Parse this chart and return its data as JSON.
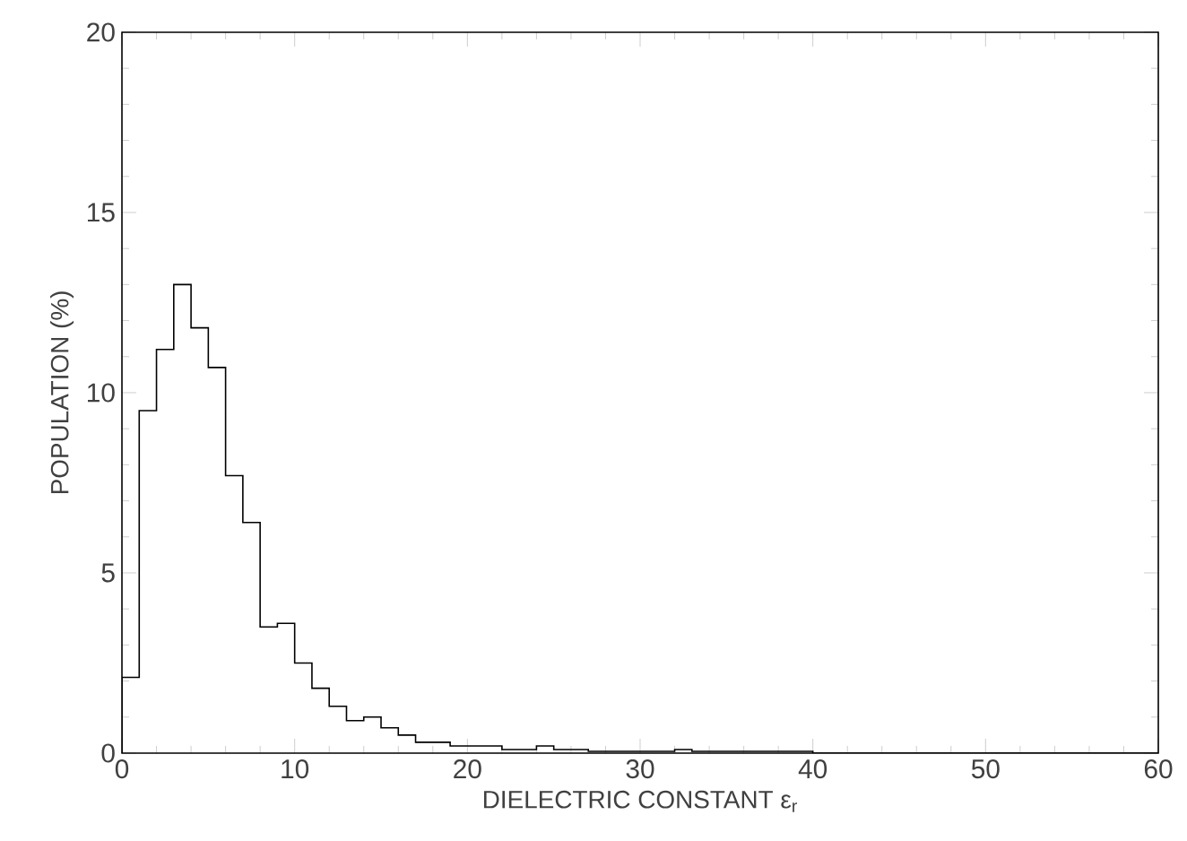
{
  "chart_data": {
    "type": "histogram",
    "xlabel": "DIELECTRIC CONSTANT ε$_{r}$",
    "ylabel": "POPULATION (%)",
    "bins": [
      0,
      1,
      2,
      3,
      4,
      5,
      6,
      7,
      8,
      9,
      10,
      11,
      12,
      13,
      14,
      15,
      16,
      17,
      18,
      19,
      20,
      21,
      22,
      23,
      24,
      25,
      26,
      27,
      28,
      29,
      30,
      31,
      32,
      33,
      34,
      35,
      36,
      37,
      38,
      39,
      40,
      41,
      42,
      43,
      44,
      45,
      46,
      47,
      48,
      49,
      50,
      51,
      52,
      53,
      54,
      55,
      56,
      57,
      58,
      59,
      60
    ],
    "values": [
      2.1,
      9.5,
      11.2,
      13.0,
      11.8,
      10.7,
      7.7,
      6.4,
      3.5,
      3.6,
      2.5,
      1.8,
      1.3,
      0.9,
      1.0,
      0.7,
      0.5,
      0.3,
      0.3,
      0.2,
      0.2,
      0.2,
      0.1,
      0.1,
      0.2,
      0.1,
      0.1,
      0.05,
      0.05,
      0.05,
      0.05,
      0.05,
      0.1,
      0.05,
      0.05,
      0.05,
      0.05,
      0.05,
      0.05,
      0.05,
      0,
      0,
      0,
      0,
      0,
      0,
      0,
      0,
      0,
      0,
      0,
      0,
      0,
      0,
      0,
      0,
      0,
      0,
      0,
      0
    ],
    "color": "#000000",
    "xlim": [
      0,
      60
    ],
    "ylim": [
      0,
      20
    ],
    "xticks": [
      0,
      10,
      20,
      30,
      40,
      50,
      60
    ],
    "yticks": [
      0,
      5,
      10,
      15,
      20
    ],
    "grid": false
  }
}
